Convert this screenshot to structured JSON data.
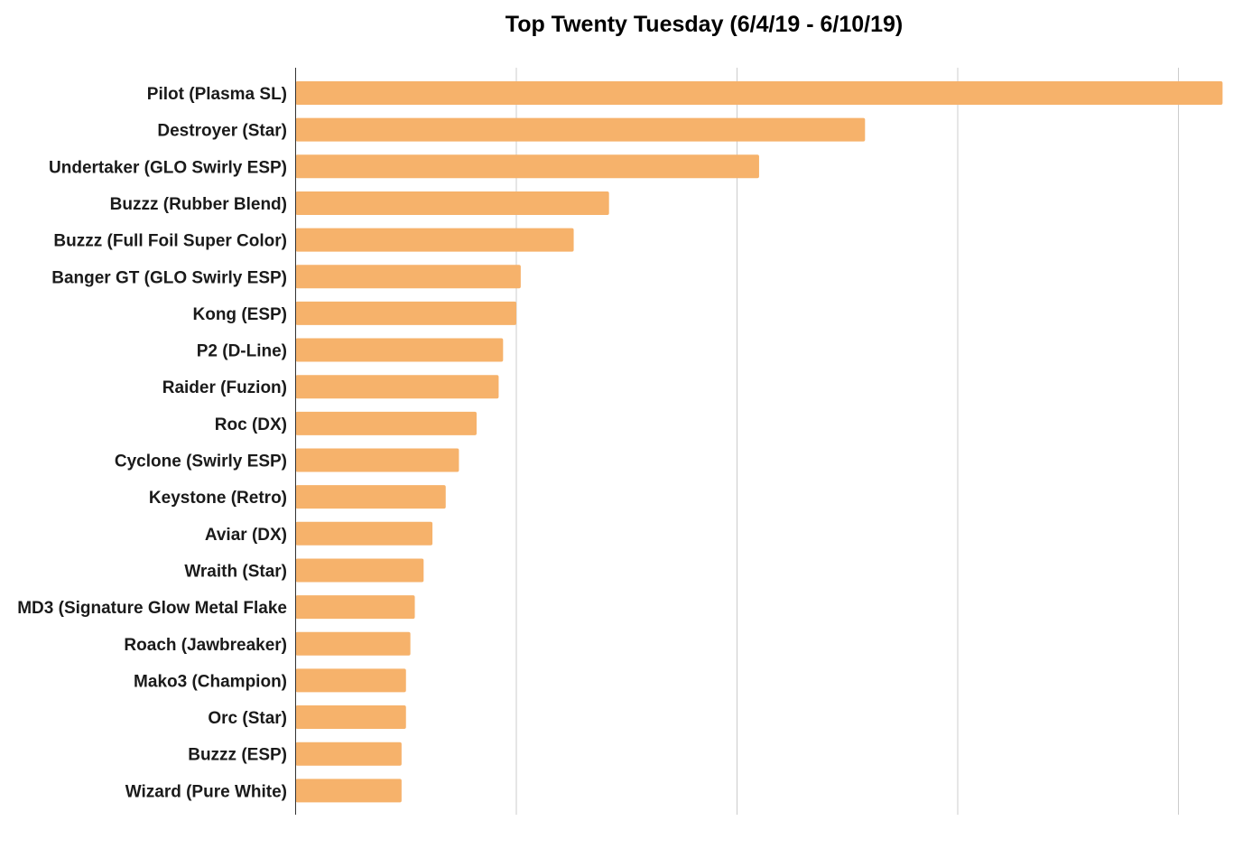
{
  "chart_data": {
    "type": "bar",
    "orientation": "horizontal",
    "title": "Top Twenty Tuesday (6/4/19 - 6/10/19)",
    "xlabel": "",
    "ylabel": "",
    "categories": [
      "Pilot (Plasma SL)",
      "Destroyer (Star)",
      "Undertaker (GLO Swirly ESP)",
      "Buzzz (Rubber Blend)",
      "Buzzz (Full Foil Super Color)",
      "Banger GT (GLO Swirly ESP)",
      "Kong (ESP)",
      "P2 (D-Line)",
      "Raider (Fuzion)",
      "Roc (DX)",
      "Cyclone (Swirly ESP)",
      "Keystone (Retro)",
      "Aviar (DX)",
      "Wraith (Star)",
      "MD3 (Signature Glow Metal Flake",
      "Roach (Jawbreaker)",
      "Mako3 (Champion)",
      "Orc (Star)",
      "Buzzz (ESP)",
      "Wizard (Pure White)"
    ],
    "values": [
      210,
      129,
      105,
      71,
      63,
      51,
      50,
      47,
      46,
      41,
      37,
      34,
      31,
      29,
      27,
      26,
      25,
      25,
      24,
      24
    ],
    "xlim": [
      0,
      210
    ],
    "gridlines_x": [
      50,
      100,
      150,
      200
    ],
    "tick_labels_shown": false,
    "grid": true,
    "bar_color": "#f6b26b",
    "legend": "none"
  }
}
